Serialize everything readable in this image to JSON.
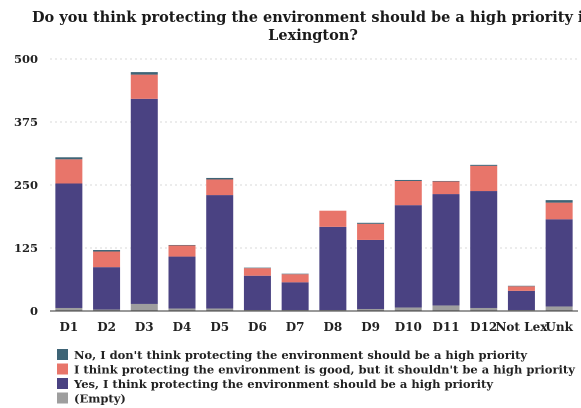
{
  "chart_data": {
    "type": "bar",
    "stacked": true,
    "title_lines": [
      "Do you think protecting the environment should be a high priority in",
      "Lexington?"
    ],
    "categories": [
      "D1",
      "D2",
      "D3",
      "D4",
      "D5",
      "D6",
      "D7",
      "D8",
      "D9",
      "D10",
      "D11",
      "D12",
      "Not Lex",
      "Unk"
    ],
    "ylim": [
      0,
      500
    ],
    "yticks": [
      "0",
      "125",
      "250",
      "375",
      "500"
    ],
    "ytick_values": [
      0,
      125,
      250,
      375,
      500
    ],
    "grid": true,
    "legend_position": "bottom-left",
    "series": [
      {
        "name": "(Empty)",
        "color": "#9e9e9e",
        "values": [
          6,
          3,
          14,
          5,
          5,
          2,
          2,
          2,
          4,
          7,
          11,
          6,
          2,
          9
        ]
      },
      {
        "name": "Yes, I think protecting the environment should be a high priority",
        "color": "#4a4282",
        "values": [
          247,
          84,
          407,
          103,
          225,
          68,
          55,
          165,
          137,
          203,
          221,
          232,
          38,
          173
        ]
      },
      {
        "name": "I think protecting the environment is good, but it shouldn't be a high priority",
        "color": "#e8756a",
        "values": [
          48,
          31,
          48,
          22,
          31,
          15,
          16,
          32,
          32,
          48,
          25,
          50,
          9,
          33
        ]
      },
      {
        "name": "No, I don't think protecting the environment should be a high priority",
        "color": "#3e6476",
        "values": [
          4,
          3,
          5,
          1,
          3,
          1,
          1,
          0,
          2,
          2,
          1,
          2,
          1,
          5
        ]
      }
    ],
    "legend_order": [
      "No, I don't think protecting the environment should be a high priority",
      "I think protecting the environment is good, but it shouldn't be a high priority",
      "Yes, I think protecting the environment should be a high priority",
      "(Empty)"
    ]
  }
}
